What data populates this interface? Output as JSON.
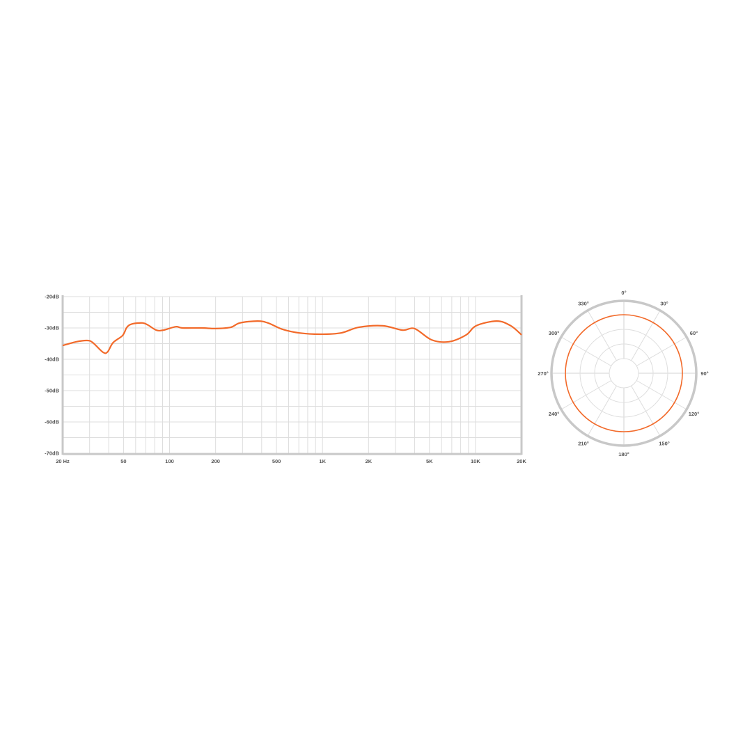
{
  "chart_data": [
    {
      "type": "line",
      "xscale": "log",
      "xlim": [
        20,
        20000
      ],
      "ylim": [
        -70,
        -20
      ],
      "grid": true,
      "x_tick_values": [
        20,
        50,
        100,
        200,
        500,
        1000,
        2000,
        5000,
        10000,
        20000
      ],
      "x_tick_labels": [
        "20 Hz",
        "50",
        "100",
        "200",
        "500",
        "1K",
        "2K",
        "5K",
        "10K",
        "20K"
      ],
      "y_tick_values": [
        -20,
        -30,
        -40,
        -50,
        -60,
        -70
      ],
      "y_tick_labels": [
        "-20dB",
        "-30dB",
        "-40dB",
        "-50dB",
        "-60dB",
        "-70dB"
      ],
      "line_color": "#f26a2a",
      "series": [
        {
          "x": [
            20,
            24.6,
            28.9,
            31.5,
            36.8,
            39.4,
            42.7,
            49.3,
            52.6,
            57,
            66.6,
            72.4,
            82,
            91,
            110,
            121,
            162,
            200,
            251,
            288,
            375,
            440,
            545,
            707,
            966,
            1320,
            1720,
            2480,
            3330,
            4000,
            5170,
            6700,
            8700,
            10100,
            13800,
            17000,
            20000
          ],
          "y": [
            -35.6,
            -34.4,
            -34,
            -34.7,
            -37.8,
            -37.6,
            -34.7,
            -32.4,
            -29.8,
            -28.7,
            -28.4,
            -29.1,
            -30.7,
            -30.7,
            -29.6,
            -30,
            -30,
            -30.2,
            -29.8,
            -28.4,
            -27.8,
            -28.4,
            -30.4,
            -31.6,
            -32,
            -31.6,
            -29.8,
            -29.3,
            -30.7,
            -30.2,
            -33.8,
            -34.4,
            -32.2,
            -29.3,
            -27.8,
            -29.3,
            -32.2
          ]
        }
      ]
    },
    {
      "type": "polar",
      "angle_labels": [
        "0°",
        "30°",
        "60°",
        "90°",
        "120°",
        "150°",
        "180°",
        "210°",
        "240°",
        "270°",
        "300°",
        "330°"
      ],
      "pattern": "omnidirectional",
      "line_color": "#f26a2a"
    }
  ]
}
